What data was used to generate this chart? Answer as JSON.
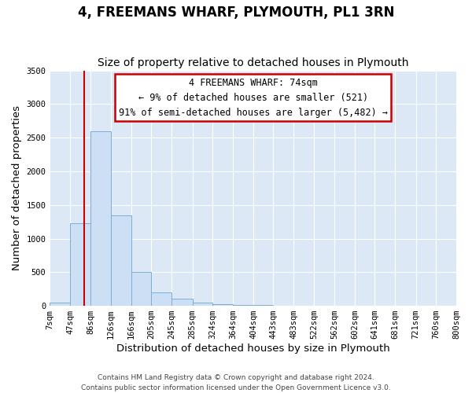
{
  "title": "4, FREEMANS WHARF, PLYMOUTH, PL1 3RN",
  "subtitle": "Size of property relative to detached houses in Plymouth",
  "xlabel": "Distribution of detached houses by size in Plymouth",
  "ylabel": "Number of detached properties",
  "bar_left_edges": [
    7,
    47,
    86,
    126,
    166,
    205,
    245,
    285,
    324,
    364,
    404,
    443,
    483,
    522,
    562,
    602,
    641,
    681,
    721,
    760
  ],
  "bar_heights": [
    50,
    1230,
    2590,
    1350,
    500,
    200,
    110,
    50,
    30,
    15,
    10,
    5,
    2,
    0,
    0,
    0,
    0,
    0,
    0,
    0
  ],
  "tick_labels": [
    "7sqm",
    "47sqm",
    "86sqm",
    "126sqm",
    "166sqm",
    "205sqm",
    "245sqm",
    "285sqm",
    "324sqm",
    "364sqm",
    "404sqm",
    "443sqm",
    "483sqm",
    "522sqm",
    "562sqm",
    "602sqm",
    "641sqm",
    "681sqm",
    "721sqm",
    "760sqm",
    "800sqm"
  ],
  "bar_color": "#ccdff5",
  "bar_edgecolor": "#7aafd4",
  "vline_x": 74,
  "vline_color": "#cc0000",
  "annotation_line1": "4 FREEMANS WHARF: 74sqm",
  "annotation_line2": "← 9% of detached houses are smaller (521)",
  "annotation_line3": "91% of semi-detached houses are larger (5,482) →",
  "ylim": [
    0,
    3500
  ],
  "yticks": [
    0,
    500,
    1000,
    1500,
    2000,
    2500,
    3000,
    3500
  ],
  "footer_line1": "Contains HM Land Registry data © Crown copyright and database right 2024.",
  "footer_line2": "Contains public sector information licensed under the Open Government Licence v3.0.",
  "fig_bg_color": "#ffffff",
  "plot_bg_color": "#dce8f5",
  "grid_color": "#ffffff",
  "title_fontsize": 12,
  "subtitle_fontsize": 10,
  "axis_label_fontsize": 9.5,
  "tick_fontsize": 7.5,
  "annotation_fontsize": 8.5,
  "footer_fontsize": 6.5
}
